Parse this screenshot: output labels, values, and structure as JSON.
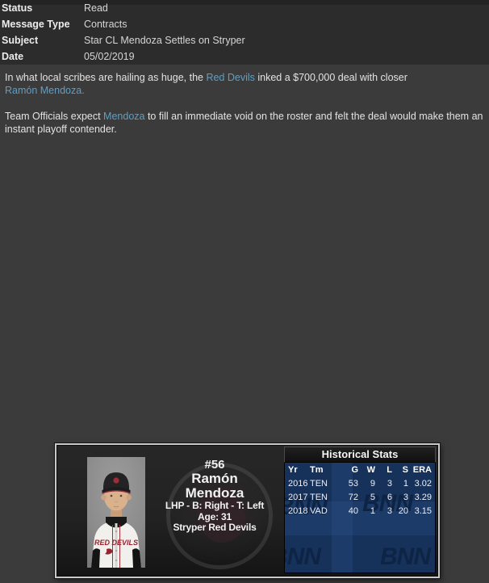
{
  "header": {
    "rows": [
      {
        "label": "Status",
        "value": "Read"
      },
      {
        "label": "Message Type",
        "value": "Contracts"
      },
      {
        "label": "Subject",
        "value": "Star CL Mendoza Settles on Stryper"
      },
      {
        "label": "Date",
        "value": "05/02/2019"
      }
    ]
  },
  "body": {
    "paragraphs": [
      {
        "segments": [
          {
            "text": "In what local scribes are hailing as huge, the "
          },
          {
            "text": "Red Devils",
            "link": true
          },
          {
            "text": " inked a $700,000 deal with closer"
          },
          {
            "text": "Ramón Mendoza.",
            "link": true,
            "br": true
          }
        ]
      },
      {
        "segments": [
          {
            "text": "Team Officials expect "
          },
          {
            "text": "Mendoza",
            "link": true
          },
          {
            "text": " to fill an immediate void on the roster and felt the deal would make them an instant playoff contender."
          }
        ]
      }
    ]
  },
  "player_card": {
    "number": "#56",
    "first_name": "Ramón",
    "last_name": "Mendoza",
    "position_line": "LHP - B: Right - T: Left",
    "age_line": "Age: 31",
    "team_line": "Stryper Red Devils",
    "jersey_text": "RED DEVILS",
    "historical_stats": {
      "title": "Historical Stats",
      "columns": [
        "Yr",
        "Tm",
        "G",
        "W",
        "L",
        "S",
        "ERA"
      ],
      "rows": [
        [
          "2016",
          "TEN",
          "53",
          "9",
          "3",
          "1",
          "3.02"
        ],
        [
          "2017",
          "TEN",
          "72",
          "5",
          "6",
          "3",
          "3.29"
        ],
        [
          "2018",
          "VAD",
          "40",
          "1",
          "3",
          "20",
          "3.15"
        ]
      ],
      "watermark": "BNN"
    }
  },
  "colors": {
    "link": "#5f9fc5",
    "header_bg": "#2c2c2c",
    "body_bg": "#3b3b3b",
    "card_border": "#c9c9c9",
    "stats_bg": "#16315a",
    "stats_watermark": "#0d2445",
    "title_bar_bg": "#141414",
    "jersey_red": "#95232e",
    "text": "#e3e3e3"
  }
}
